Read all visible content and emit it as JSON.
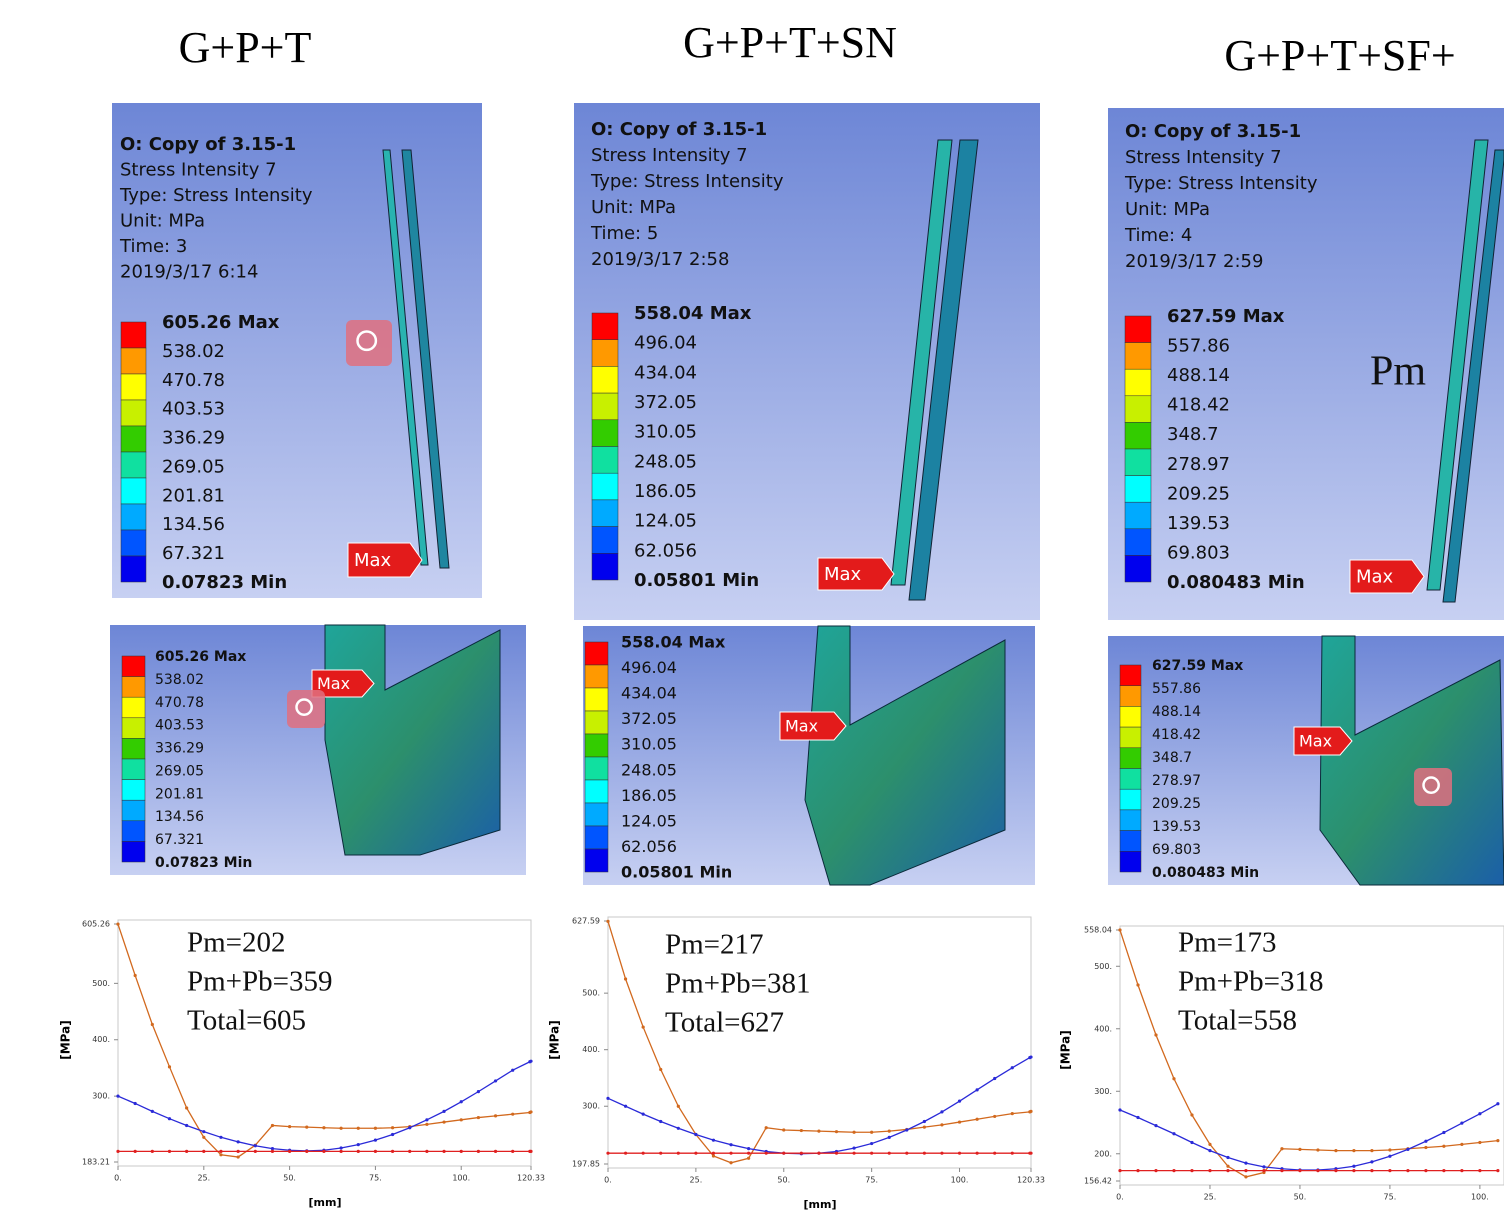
{
  "columns": [
    {
      "title": "G+P+T",
      "result": {
        "lines": [
          "O: Copy of 3.15-1",
          "Stress Intensity 7",
          "Type: Stress Intensity",
          "Unit: MPa",
          "Time: 3",
          "2019/3/17 6:14"
        ],
        "legend": [
          "605.26 Max",
          "538.02",
          "470.78",
          "403.53",
          "336.29",
          "269.05",
          "201.81",
          "134.56",
          "67.321",
          "0.07823 Min"
        ],
        "tag": "Max"
      },
      "detail": {
        "legend": [
          "605.26 Max",
          "538.02",
          "470.78",
          "403.53",
          "336.29",
          "269.05",
          "201.81",
          "134.56",
          "67.321",
          "0.07823 Min"
        ],
        "tag": "Max"
      }
    },
    {
      "title": "G+P+T+SN",
      "result": {
        "lines": [
          "O: Copy of 3.15-1",
          "Stress Intensity 7",
          "Type: Stress Intensity",
          "Unit: MPa",
          "Time: 5",
          "2019/3/17 2:58"
        ],
        "legend": [
          "558.04 Max",
          "496.04",
          "434.04",
          "372.05",
          "310.05",
          "248.05",
          "186.05",
          "124.05",
          "62.056",
          "0.05801 Min"
        ],
        "tag": "Max"
      },
      "detail": {
        "legend": [
          "558.04 Max",
          "496.04",
          "434.04",
          "372.05",
          "310.05",
          "248.05",
          "186.05",
          "124.05",
          "62.056",
          "0.05801 Min"
        ],
        "tag": "Max"
      }
    },
    {
      "title": "G+P+T+SF+",
      "result": {
        "lines": [
          "O: Copy of 3.15-1",
          "Stress Intensity 7",
          "Type: Stress Intensity",
          "Unit: MPa",
          "Time: 4",
          "2019/3/17 2:59"
        ],
        "legend": [
          "627.59 Max",
          "557.86",
          "488.14",
          "418.42",
          "348.7",
          "278.97",
          "209.25",
          "139.53",
          "69.803",
          "0.080483 Min"
        ],
        "tag": "Max",
        "overlay": "Pm"
      },
      "detail": {
        "legend": [
          "627.59 Max",
          "557.86",
          "488.14",
          "418.42",
          "348.7",
          "278.97",
          "209.25",
          "139.53",
          "69.803",
          "0.080483 Min"
        ],
        "tag": "Max"
      }
    }
  ],
  "chart_data": [
    {
      "type": "line",
      "y_label": "[MPa]",
      "x_label": "[mm]",
      "annotations": [
        "Pm=202",
        "Pm+Pb=359",
        "Total=605"
      ],
      "xlim": [
        0,
        120.33
      ],
      "ylim": [
        183.21,
        605.26
      ],
      "xticks": [
        {
          "value": 0,
          "label": "0."
        },
        {
          "value": 25,
          "label": "25."
        },
        {
          "value": 50,
          "label": "50."
        },
        {
          "value": 75,
          "label": "75."
        },
        {
          "value": 100,
          "label": "100."
        },
        120.33
      ],
      "yticks": [
        183.21,
        {
          "value": 300,
          "label": "300."
        },
        {
          "value": 400,
          "label": "400."
        },
        {
          "value": 500,
          "label": "500."
        },
        605.26
      ],
      "x": [
        0,
        5,
        10,
        15,
        20,
        25,
        30,
        35,
        40,
        45,
        50,
        55,
        60,
        65,
        70,
        75,
        80,
        85,
        90,
        95,
        100,
        105,
        110,
        115,
        120,
        120.33
      ],
      "series": [
        {
          "color": "#d2691e",
          "values": [
            605,
            514,
            427,
            352,
            279,
            227,
            196,
            192,
            213,
            248,
            246,
            245,
            244,
            243,
            243,
            243,
            244,
            246,
            250,
            254,
            258,
            262,
            265,
            268,
            271,
            272
          ]
        },
        {
          "color": "#2a2ad8",
          "values": [
            300,
            287,
            273,
            260,
            248,
            237,
            227,
            219,
            212,
            207,
            204,
            203,
            204,
            208,
            214,
            222,
            232,
            244,
            258,
            273,
            290,
            308,
            327,
            346,
            361,
            362
          ]
        },
        {
          "color": "#e02020",
          "values": [
            202,
            202,
            202,
            202,
            202,
            202,
            202,
            202,
            202,
            202,
            202,
            202,
            202,
            202,
            202,
            202,
            202,
            202,
            202,
            202,
            202,
            202,
            202,
            202,
            202,
            202
          ]
        }
      ]
    },
    {
      "type": "line",
      "y_label": "[MPa]",
      "x_label": "[mm]",
      "annotations": [
        "Pm=217",
        "Pm+Pb=381",
        "Total=627"
      ],
      "xlim": [
        0,
        120.33
      ],
      "ylim": [
        197.85,
        627.59
      ],
      "xticks": [
        {
          "value": 0,
          "label": "0."
        },
        {
          "value": 25,
          "label": "25."
        },
        {
          "value": 50,
          "label": "50."
        },
        {
          "value": 75,
          "label": "75."
        },
        {
          "value": 100,
          "label": "100."
        },
        120.33
      ],
      "yticks": [
        197.85,
        {
          "value": 300,
          "label": "300."
        },
        {
          "value": 400,
          "label": "400."
        },
        {
          "value": 500,
          "label": "500."
        },
        627.59
      ],
      "x": [
        0,
        5,
        10,
        15,
        20,
        25,
        30,
        35,
        40,
        45,
        50,
        55,
        60,
        65,
        70,
        75,
        80,
        85,
        90,
        95,
        100,
        105,
        110,
        115,
        120,
        120.33
      ],
      "series": [
        {
          "color": "#d2691e",
          "values": [
            627,
            525,
            440,
            365,
            300,
            250,
            212,
            200,
            208,
            262,
            258,
            257,
            256,
            255,
            254,
            254,
            256,
            259,
            263,
            267,
            272,
            277,
            282,
            287,
            290,
            291
          ]
        },
        {
          "color": "#2a2ad8",
          "values": [
            314,
            300,
            286,
            273,
            261,
            250,
            240,
            232,
            225,
            220,
            217,
            216,
            217,
            220,
            226,
            234,
            245,
            258,
            273,
            290,
            309,
            329,
            349,
            368,
            386,
            387
          ]
        },
        {
          "color": "#e02020",
          "values": [
            217,
            217,
            217,
            217,
            217,
            217,
            217,
            217,
            217,
            217,
            217,
            217,
            217,
            217,
            217,
            217,
            217,
            217,
            217,
            217,
            217,
            217,
            217,
            217,
            217,
            217
          ]
        }
      ]
    },
    {
      "type": "line",
      "y_label": "[MPa]",
      "annotations": [
        "Pm=173",
        "Pm+Pb=318",
        "Total=558"
      ],
      "xlim": [
        0,
        106.7
      ],
      "ylim": [
        156.42,
        558.04
      ],
      "xticks": [
        {
          "value": 0,
          "label": "0."
        },
        {
          "value": 25,
          "label": "25."
        },
        {
          "value": 50,
          "label": "50."
        },
        {
          "value": 75,
          "label": "75."
        },
        {
          "value": 100,
          "label": "100."
        }
      ],
      "yticks": [
        156.42,
        {
          "value": 200,
          "label": "200."
        },
        {
          "value": 300,
          "label": "300."
        },
        {
          "value": 400,
          "label": "400."
        },
        {
          "value": 500,
          "label": "500."
        },
        558.04
      ],
      "x": [
        0,
        5,
        10,
        15,
        20,
        25,
        30,
        35,
        40,
        45,
        50,
        55,
        60,
        65,
        70,
        75,
        80,
        85,
        90,
        95,
        100,
        105
      ],
      "series": [
        {
          "color": "#d2691e",
          "values": [
            558,
            470,
            390,
            320,
            262,
            215,
            180,
            163,
            170,
            208,
            207,
            206,
            205,
            205,
            205,
            206,
            208,
            210,
            212,
            215,
            218,
            221
          ]
        },
        {
          "color": "#2a2ad8",
          "values": [
            270,
            258,
            245,
            232,
            218,
            205,
            194,
            185,
            179,
            176,
            174,
            174,
            176,
            180,
            187,
            196,
            207,
            220,
            234,
            249,
            264,
            280
          ]
        },
        {
          "color": "#e02020",
          "values": [
            173,
            173,
            173,
            173,
            173,
            173,
            173,
            173,
            173,
            173,
            173,
            173,
            173,
            173,
            173,
            173,
            173,
            173,
            173,
            173,
            173,
            173
          ]
        }
      ]
    }
  ]
}
